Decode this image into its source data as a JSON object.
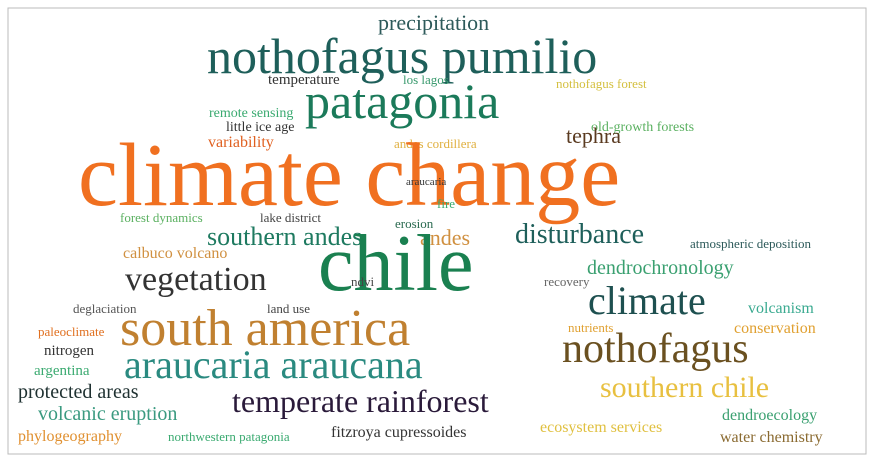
{
  "words": [
    {
      "text": "precipitation",
      "color": "#2d5a5a"
    },
    {
      "text": "nothofagus pumilio",
      "color": "#1e5f5a"
    },
    {
      "text": "temperature",
      "color": "#333333"
    },
    {
      "text": "los lagos",
      "color": "#3a9a6e"
    },
    {
      "text": "nothofagus forest",
      "color": "#d4c040"
    },
    {
      "text": "patagonia",
      "color": "#1b7a5a"
    },
    {
      "text": "remote sensing",
      "color": "#3aaa70"
    },
    {
      "text": "little ice age",
      "color": "#333333"
    },
    {
      "text": "old-growth forests",
      "color": "#5ab060"
    },
    {
      "text": "variability",
      "color": "#e06020"
    },
    {
      "text": "tephra",
      "color": "#5a3a20"
    },
    {
      "text": "andes cordillera",
      "color": "#e0b040"
    },
    {
      "text": "climate change",
      "color": "#f07020"
    },
    {
      "text": "araucaria",
      "color": "#333333"
    },
    {
      "text": "fire",
      "color": "#3aaa70"
    },
    {
      "text": "forest dynamics",
      "color": "#5ab060"
    },
    {
      "text": "lake district",
      "color": "#444444"
    },
    {
      "text": "erosion",
      "color": "#2a6a50"
    },
    {
      "text": "disturbance",
      "color": "#1e5f5a"
    },
    {
      "text": "southern andes",
      "color": "#1e7a60"
    },
    {
      "text": "andes",
      "color": "#d09040"
    },
    {
      "text": "chile",
      "color": "#1a8050"
    },
    {
      "text": "atmospheric deposition",
      "color": "#2d5a5a"
    },
    {
      "text": "calbuco volcano",
      "color": "#d09040"
    },
    {
      "text": "dendrochronology",
      "color": "#3aa070"
    },
    {
      "text": "vegetation",
      "color": "#333333"
    },
    {
      "text": "ndvi",
      "color": "#444444"
    },
    {
      "text": "recovery",
      "color": "#666666"
    },
    {
      "text": "climate",
      "color": "#1e5050"
    },
    {
      "text": "deglaciation",
      "color": "#555555"
    },
    {
      "text": "land use",
      "color": "#444444"
    },
    {
      "text": "volcanism",
      "color": "#3aaa90"
    },
    {
      "text": "south america",
      "color": "#c08030"
    },
    {
      "text": "paleoclimate",
      "color": "#e07020"
    },
    {
      "text": "conservation",
      "color": "#e0a030"
    },
    {
      "text": "nutrients",
      "color": "#e0a030"
    },
    {
      "text": "nitrogen",
      "color": "#333333"
    },
    {
      "text": "nothofagus",
      "color": "#6a5020"
    },
    {
      "text": "argentina",
      "color": "#3aaa70"
    },
    {
      "text": "araucaria araucana",
      "color": "#2a8a80"
    },
    {
      "text": "protected areas",
      "color": "#1e3030"
    },
    {
      "text": "southern chile",
      "color": "#e8c040"
    },
    {
      "text": "temperate rainforest",
      "color": "#2a1a3a"
    },
    {
      "text": "volcanic eruption",
      "color": "#3a9a80"
    },
    {
      "text": "dendroecology",
      "color": "#3aa070"
    },
    {
      "text": "phylogeography",
      "color": "#e09030"
    },
    {
      "text": "northwestern patagonia",
      "color": "#3aaa70"
    },
    {
      "text": "fitzroya cupressoides",
      "color": "#333333"
    },
    {
      "text": "ecosystem services",
      "color": "#e0c040"
    },
    {
      "text": "water chemistry",
      "color": "#8a6a30"
    }
  ]
}
